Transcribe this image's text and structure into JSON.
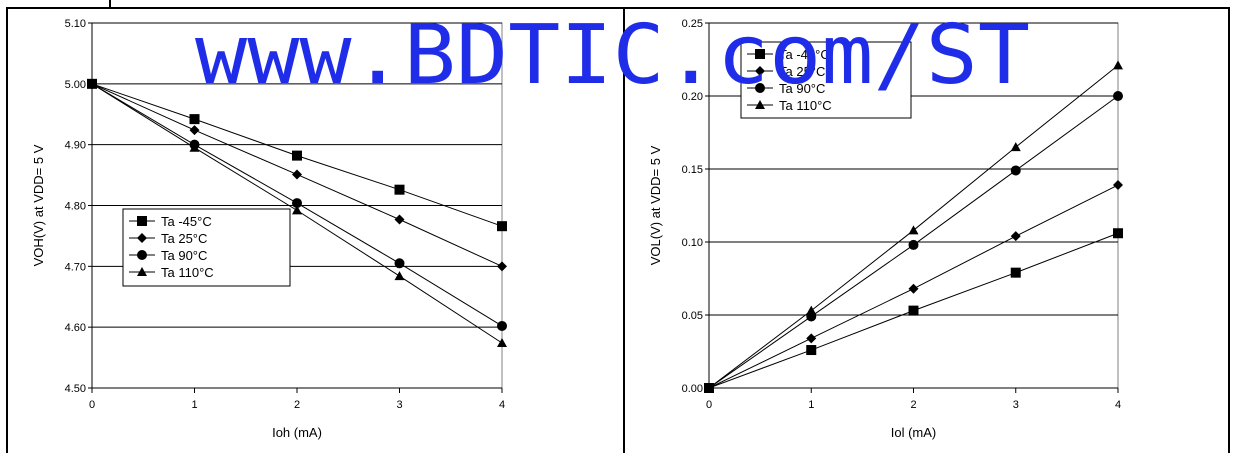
{
  "watermark": "www.BDTIC.com/ST",
  "chart_data": [
    {
      "type": "line",
      "xlabel": "Ioh (mA)",
      "ylabel": "VOH(V) at VDD= 5 V",
      "x": [
        0,
        1,
        2,
        3,
        4
      ],
      "xlim": [
        0,
        4
      ],
      "ylim": [
        4.5,
        5.1
      ],
      "xticks": [
        "0",
        "1",
        "2",
        "3",
        "4"
      ],
      "yticks": [
        "4.50",
        "4.60",
        "4.70",
        "4.80",
        "4.90",
        "5.00",
        "5.10"
      ],
      "grid": "horizontal",
      "legend_position": "lower-left",
      "series": [
        {
          "name": "Ta -45°C",
          "marker": "square",
          "values": [
            5.0,
            4.942,
            4.882,
            4.826,
            4.766
          ]
        },
        {
          "name": "Ta 25°C",
          "marker": "diamond",
          "values": [
            5.0,
            4.924,
            4.851,
            4.777,
            4.7
          ]
        },
        {
          "name": "Ta 90°C",
          "marker": "circle",
          "values": [
            5.0,
            4.9,
            4.804,
            4.705,
            4.602
          ]
        },
        {
          "name": "Ta 110°C",
          "marker": "triangle",
          "values": [
            5.0,
            4.895,
            4.792,
            4.684,
            4.574
          ]
        }
      ]
    },
    {
      "type": "line",
      "xlabel": "Iol (mA)",
      "ylabel": "VOL(V) at VDD= 5 V",
      "x": [
        0,
        1,
        2,
        3,
        4
      ],
      "xlim": [
        0,
        4
      ],
      "ylim": [
        0,
        0.25
      ],
      "xticks": [
        "0",
        "1",
        "2",
        "3",
        "4"
      ],
      "yticks": [
        "0.00",
        "0.05",
        "0.10",
        "0.15",
        "0.20",
        "0.25"
      ],
      "grid": "horizontal",
      "legend_position": "top-left",
      "series": [
        {
          "name": "Ta -45°C",
          "marker": "square",
          "values": [
            0,
            0.026,
            0.053,
            0.079,
            0.106
          ]
        },
        {
          "name": "Ta 25°C",
          "marker": "diamond",
          "values": [
            0,
            0.034,
            0.068,
            0.104,
            0.139
          ]
        },
        {
          "name": "Ta 90°C",
          "marker": "circle",
          "values": [
            0,
            0.049,
            0.098,
            0.149,
            0.2
          ]
        },
        {
          "name": "Ta 110°C",
          "marker": "triangle",
          "values": [
            0,
            0.053,
            0.108,
            0.165,
            0.221
          ]
        }
      ]
    }
  ]
}
